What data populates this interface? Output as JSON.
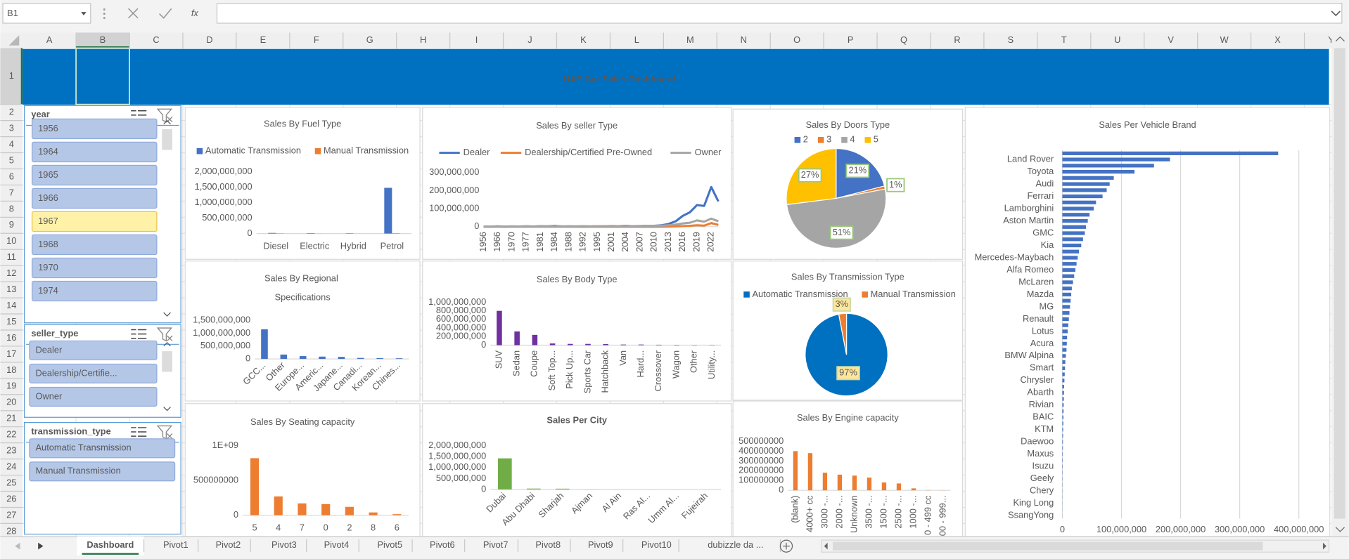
{
  "formula_bar": {
    "name_box": "B1",
    "fx": "fx"
  },
  "columns": [
    "A",
    "B",
    "C",
    "D",
    "E",
    "F",
    "G",
    "H",
    "I",
    "J",
    "K",
    "L",
    "M",
    "N",
    "O",
    "P",
    "Q",
    "R",
    "S",
    "T",
    "U",
    "V",
    "W",
    "X",
    "Y"
  ],
  "rows": [
    1,
    2,
    3,
    4,
    5,
    6,
    7,
    8,
    9,
    10,
    11,
    12,
    13,
    14,
    15,
    16,
    17,
    18,
    19,
    20,
    21,
    22,
    23,
    24,
    25,
    26,
    27,
    28
  ],
  "dashboard_title": "UAE Car Sales Dashboard",
  "slicers": [
    {
      "title": "year",
      "items": [
        "1956",
        "1964",
        "1965",
        "1966",
        "1967",
        "1968",
        "1970",
        "1974"
      ],
      "highlighted": "1967"
    },
    {
      "title": "seller_type",
      "items": [
        "Dealer",
        "Dealership/Certifie...",
        "Owner"
      ]
    },
    {
      "title": "transmission_type",
      "items": [
        "Automatic Transmission",
        "Manual Transmission"
      ]
    }
  ],
  "sheet_tabs": [
    "Dashboard",
    "Pivot1",
    "Pivot2",
    "Pivot3",
    "Pivot4",
    "Pivot5",
    "Pivot6",
    "Pivot7",
    "Pivot8",
    "Pivot9",
    "Pivot10",
    "dubizzle da ..."
  ],
  "active_tab": "Dashboard",
  "chart_data": [
    {
      "type": "bar",
      "title": "Sales By Fuel Type",
      "categories": [
        "Diesel",
        "Electric",
        "Hybrid",
        "Petrol"
      ],
      "series": [
        {
          "name": "Automatic Transmission",
          "color": "#4472c4",
          "values": [
            20000000.0,
            15000000.0,
            10000000.0,
            1480000000.0
          ]
        },
        {
          "name": "Manual Transmission",
          "color": "#ed7d31",
          "values": [
            8000000.0,
            2000000.0,
            1000000.0,
            15000000.0
          ]
        }
      ],
      "ylim": [
        0,
        2000000000.0
      ],
      "yticks": [
        0,
        {
          "value": 500000000.0,
          "label": "500,000,000"
        },
        {
          "value": 1000000000.0,
          "label": "1,000,000,000"
        },
        {
          "value": 1500000000.0,
          "label": "1,500,000,000"
        },
        {
          "value": 2000000000.0,
          "label": "2,000,000,000"
        }
      ],
      "legend": "top",
      "grid": false
    },
    {
      "type": "line",
      "title": "Sales By seller Type",
      "categories": [
        "1956",
        null,
        "1966",
        null,
        "1970",
        null,
        "1977",
        null,
        "1981",
        null,
        "1984",
        null,
        "1988",
        null,
        "1992",
        null,
        "1995",
        null,
        "2001",
        null,
        "2004",
        null,
        "2007",
        null,
        "2010",
        null,
        "2013",
        null,
        "2016",
        null,
        "2019",
        null,
        "2022",
        null
      ],
      "series": [
        {
          "name": "Dealer",
          "color": "#4472c4",
          "values": [
            1000000.0,
            0,
            2000000.0,
            0,
            1000000.0,
            1000000.0,
            2000000.0,
            1000000.0,
            3000000.0,
            2000000.0,
            5000000.0,
            1000000.0,
            2000000.0,
            1000000.0,
            1000000.0,
            1000000.0,
            2000000.0,
            2000000.0,
            3000000.0,
            3000000.0,
            5000000.0,
            2000000.0,
            3000000.0,
            5000000.0,
            5000000.0,
            8000000.0,
            15000000.0,
            30000000.0,
            60000000.0,
            80000000.0,
            120000000.0,
            115000000.0,
            220000000.0,
            140000000.0
          ]
        },
        {
          "name": "Dealership/Certified Pre-Owned",
          "color": "#ed7d31",
          "values": [
            0,
            0,
            0,
            0,
            0,
            0,
            0,
            0,
            0,
            0,
            0,
            0,
            0,
            0,
            0,
            0,
            0,
            0,
            0,
            0,
            0,
            0,
            0,
            0,
            0,
            0,
            1000000.0,
            2000000.0,
            3000000.0,
            5000000.0,
            8000000.0,
            6000000.0,
            20000000.0,
            10000000.0
          ]
        },
        {
          "name": "Owner",
          "color": "#a5a5a5",
          "values": [
            1000000.0,
            1000000.0,
            2000000.0,
            1000000.0,
            2000000.0,
            1000000.0,
            2000000.0,
            1000000.0,
            2000000.0,
            2000000.0,
            3000000.0,
            2000000.0,
            2000000.0,
            2000000.0,
            3000000.0,
            2000000.0,
            3000000.0,
            3000000.0,
            4000000.0,
            3000000.0,
            4000000.0,
            3000000.0,
            4000000.0,
            5000000.0,
            5000000.0,
            6000000.0,
            8000000.0,
            12000000.0,
            18000000.0,
            22000000.0,
            35000000.0,
            28000000.0,
            45000000.0,
            30000000.0
          ]
        }
      ],
      "ylim": [
        0,
        300000000.0
      ],
      "yticks": [
        0,
        {
          "value": 100000000.0,
          "label": "100,000,000"
        },
        {
          "value": 200000000.0,
          "label": "200,000,000"
        },
        {
          "value": 300000000.0,
          "label": "300,000,000"
        }
      ],
      "legend": "top",
      "grid": false
    },
    {
      "type": "pie",
      "title": "Sales By Doors Type",
      "categories": [
        "2",
        "3",
        "4",
        "5"
      ],
      "values": [
        21,
        1,
        51,
        27
      ],
      "value_labels": [
        "21%",
        "1%",
        "51%",
        "27%"
      ],
      "colors": [
        "#4472c4",
        "#ed7d31",
        "#a5a5a5",
        "#ffc000"
      ],
      "legend": "top"
    },
    {
      "type": "pie",
      "title": "Sales By Transmission Type",
      "categories": [
        "Automatic Transmission",
        "Manual Transmission"
      ],
      "values": [
        97,
        3
      ],
      "value_labels": [
        "97%",
        "3%"
      ],
      "colors": [
        "#0070c0",
        "#ed7d31"
      ],
      "legend": "top"
    },
    {
      "type": "bar",
      "title": "Sales By Regional Specifications",
      "categories": [
        "GCC...",
        "Other",
        "Europe...",
        "Americ...",
        "Japane...",
        "Canadi...",
        "Korean...",
        "Chines..."
      ],
      "values": [
        1150000000.0,
        170000000.0,
        110000000.0,
        90000000.0,
        80000000.0,
        40000000.0,
        30000000.0,
        25000000.0
      ],
      "color": "#4472c4",
      "ylim": [
        0,
        1500000000.0
      ],
      "yticks": [
        0,
        {
          "value": 500000000.0,
          "label": "500,000,000"
        },
        {
          "value": 1000000000.0,
          "label": "1,000,000,000"
        },
        {
          "value": 1500000000.0,
          "label": "1,500,000,000"
        }
      ],
      "grid": false
    },
    {
      "type": "bar",
      "title": "Sales By Body Type",
      "categories": [
        "SUV",
        "Sedan",
        "Coupe",
        "Soft Top...",
        "Pick Up...",
        "Sports Car",
        "Hatchback",
        "Van",
        "Hard...",
        "Crossover",
        "Wagon",
        "Other",
        "Utility..."
      ],
      "values": [
        800000000.0,
        320000000.0,
        240000000.0,
        40000000.0,
        30000000.0,
        30000000.0,
        25000000.0,
        15000000.0,
        15000000.0,
        10000000.0,
        8000000.0,
        5000000.0,
        5000000.0
      ],
      "color": "#7030a0",
      "ylim": [
        0,
        1000000000.0
      ],
      "yticks": [
        0,
        {
          "value": 200000000.0,
          "label": "200,000,000"
        },
        {
          "value": 400000000.0,
          "label": "400,000,000"
        },
        {
          "value": 600000000.0,
          "label": "600,000,000"
        },
        {
          "value": 800000000.0,
          "label": "800,000,000"
        },
        {
          "value": 1000000000.0,
          "label": "1,000,000,000"
        }
      ],
      "grid": false
    },
    {
      "type": "bar",
      "title": "Sales By Seating capacity",
      "categories": [
        "5",
        "4",
        "7",
        "0",
        "2",
        "8",
        "6"
      ],
      "values": [
        820000000.0,
        270000000.0,
        170000000.0,
        160000000.0,
        120000000.0,
        40000000.0,
        15000000.0
      ],
      "color": "#ed7d31",
      "ylim": [
        0,
        1000000000.0
      ],
      "yticks": [
        0,
        500000000,
        {
          "value": 1000000000.0,
          "label": "1E+09"
        }
      ],
      "grid": false
    },
    {
      "type": "bar",
      "title": "Sales Per City",
      "categories": [
        "Dubai",
        "Abu Dhabi",
        "Sharjah",
        "Ajman",
        "Al Ain",
        "Ras Al...",
        "Umm Al...",
        "Fujeirah"
      ],
      "values": [
        1420000000.0,
        40000000.0,
        35000000.0,
        5000000.0,
        3000000.0,
        2000000.0,
        2000000.0,
        1000000.0
      ],
      "color": "#70ad47",
      "ylim": [
        0,
        2000000000.0
      ],
      "yticks": [
        0,
        {
          "value": 500000000.0,
          "label": "500,000,000"
        },
        {
          "value": 1000000000.0,
          "label": "1,000,000,000"
        },
        {
          "value": 1500000000.0,
          "label": "1,500,000,000"
        },
        {
          "value": 2000000000.0,
          "label": "2,000,000,000"
        }
      ],
      "grid": false
    },
    {
      "type": "bar",
      "title": "Sales By Engine capacity",
      "categories": [
        "(blank)",
        "4000+ cc",
        "3000 -...",
        "2000 -...",
        "Unknown",
        "3500 -...",
        "1500 -...",
        "2500 -...",
        "1000 -...",
        "0 - 499 cc",
        "500 - 999..."
      ],
      "values": [
        400000000.0,
        380000000.0,
        180000000.0,
        160000000.0,
        150000000.0,
        130000000.0,
        80000000.0,
        70000000.0,
        20000000.0,
        2000000.0,
        1000000.0
      ],
      "color": "#ed7d31",
      "ylim": [
        0,
        500000000.0
      ],
      "yticks": [
        0,
        100000000,
        200000000,
        300000000,
        400000000,
        500000000
      ],
      "grid": false
    },
    {
      "type": "hbar",
      "title": "Sales Per Vehicle Brand",
      "categories": [
        null,
        "Land Rover",
        null,
        "Toyota",
        null,
        "Audi",
        null,
        "Ferrari",
        null,
        "Lamborghini",
        null,
        "Aston Martin",
        null,
        "GMC",
        null,
        "Kia",
        null,
        "Mercedes-Maybach",
        null,
        "Alfa Romeo",
        null,
        "McLaren",
        null,
        "Mazda",
        null,
        "MG",
        null,
        "Renault",
        null,
        "Lotus",
        null,
        "Acura",
        null,
        "BMW Alpina",
        null,
        "Smart",
        null,
        "Chrysler",
        null,
        "Abarth",
        null,
        "Rivian",
        null,
        "BAIC",
        null,
        "KTM",
        null,
        "Daewoo",
        null,
        "Maxus",
        null,
        "Isuzu",
        null,
        "Geely",
        null,
        "Chery",
        null,
        "King Long",
        null,
        "SsangYong"
      ],
      "values": [
        365000000.0,
        182000000.0,
        155000000.0,
        122000000.0,
        87000000.0,
        80000000.0,
        75000000.0,
        68000000.0,
        57000000.0,
        53000000.0,
        46000000.0,
        43000000.0,
        40000000.0,
        38000000.0,
        35000000.0,
        32000000.0,
        28000000.0,
        26000000.0,
        24000000.0,
        22000000.0,
        20000000.0,
        18000000.0,
        16000000.0,
        15000000.0,
        14000000.0,
        13000000.0,
        12000000.0,
        11000000.0,
        10000000.0,
        9000000.0,
        8000000.0,
        7500000.0,
        7000000.0,
        6000000.0,
        5000000.0,
        4500000.0,
        4000000.0,
        3500000.0,
        3000000.0,
        2800000.0,
        2500000.0,
        2200000.0,
        2000000.0,
        1800000.0,
        1600000.0,
        1400000.0,
        1200000.0,
        1000000.0,
        900000.0,
        800000.0,
        700000.0,
        600000.0,
        500000.0,
        400000.0,
        350000.0,
        300000.0,
        250000.0,
        200000.0,
        150000.0,
        100000.0
      ],
      "color": "#4472c4",
      "xlim": [
        0,
        400000000.0
      ],
      "xticks": [
        0,
        {
          "value": 100000000.0,
          "label": "100,000,000"
        },
        {
          "value": 200000000.0,
          "label": "200,000,000"
        },
        {
          "value": 300000000.0,
          "label": "300,000,000"
        },
        {
          "value": 400000000.0,
          "label": "400,000,000"
        }
      ],
      "grid": true
    }
  ]
}
